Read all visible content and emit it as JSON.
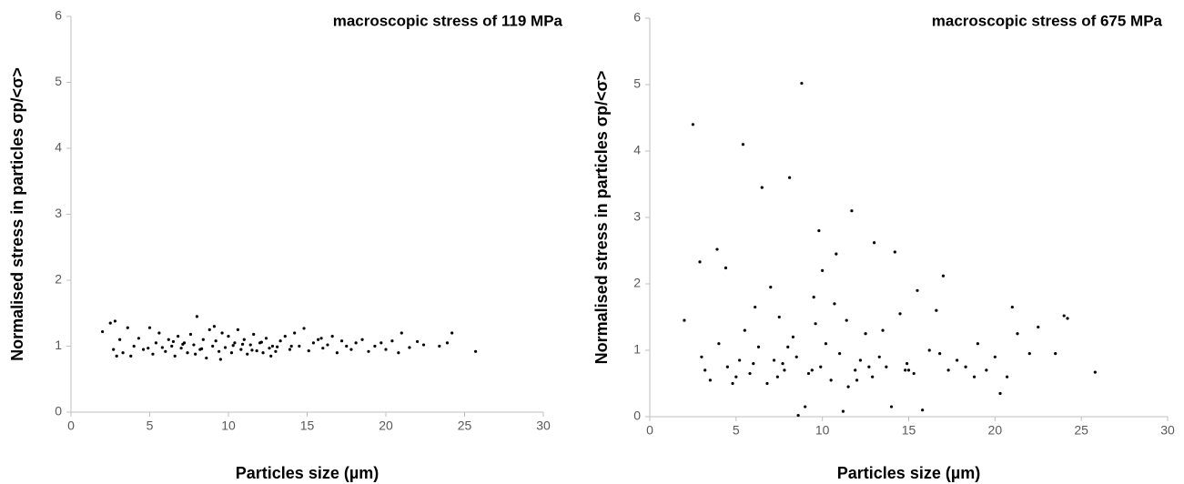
{
  "chart_data": [
    {
      "type": "scatter",
      "title": "macroscopic stress of 119 MPa",
      "xlabel": "Particles size (µm)",
      "ylabel": "Normalised stress in particles σp/<σ>",
      "xlim": [
        0,
        30
      ],
      "xticks": [
        0,
        5,
        10,
        15,
        20,
        25,
        30
      ],
      "ylim": [
        0,
        6
      ],
      "yticks": [
        0,
        1,
        2,
        3,
        4,
        5,
        6
      ],
      "grid": false,
      "color": "#000000",
      "x": [
        2.0,
        2.5,
        2.8,
        2.7,
        3.1,
        3.3,
        3.6,
        3.8,
        4.0,
        4.3,
        4.6,
        5.0,
        5.2,
        5.4,
        5.6,
        5.8,
        6.0,
        6.2,
        6.4,
        6.6,
        6.8,
        7.0,
        7.2,
        7.4,
        7.6,
        7.8,
        8.0,
        8.2,
        8.4,
        8.6,
        8.8,
        9.0,
        9.2,
        9.4,
        9.6,
        9.8,
        10.0,
        10.2,
        10.4,
        10.6,
        10.8,
        11.0,
        11.2,
        11.4,
        11.6,
        11.8,
        12.0,
        12.2,
        12.4,
        12.6,
        12.8,
        13.0,
        13.3,
        13.6,
        13.9,
        14.2,
        14.5,
        14.8,
        15.1,
        15.4,
        15.7,
        16.0,
        16.3,
        16.6,
        16.9,
        17.2,
        17.5,
        17.8,
        18.1,
        18.5,
        18.9,
        19.3,
        19.7,
        20.0,
        20.4,
        20.8,
        21.0,
        21.5,
        22.0,
        22.4,
        23.4,
        23.9,
        24.2,
        25.7,
        2.9,
        4.9,
        6.5,
        7.9,
        9.1,
        10.9,
        12.7,
        14.0,
        15.9,
        9.5,
        7.1,
        8.3,
        10.3,
        11.5,
        12.1,
        13.1
      ],
      "values": [
        1.22,
        1.35,
        1.38,
        0.95,
        1.1,
        0.9,
        1.28,
        0.85,
        1.0,
        1.12,
        0.95,
        1.28,
        0.88,
        1.05,
        1.2,
        0.98,
        0.92,
        1.1,
        1.0,
        0.85,
        1.15,
        0.97,
        1.05,
        0.9,
        1.18,
        1.02,
        1.45,
        0.95,
        1.1,
        0.82,
        1.25,
        1.0,
        1.08,
        0.92,
        1.2,
        0.98,
        1.15,
        0.9,
        1.05,
        1.25,
        0.95,
        1.1,
        0.88,
        1.02,
        1.18,
        0.93,
        1.05,
        0.9,
        1.12,
        0.97,
        1.0,
        0.92,
        1.08,
        1.15,
        0.95,
        1.2,
        1.0,
        1.27,
        0.93,
        1.05,
        1.1,
        0.97,
        1.02,
        1.15,
        0.9,
        1.08,
        1.0,
        0.95,
        1.05,
        1.1,
        0.92,
        1.0,
        1.05,
        0.95,
        1.08,
        0.9,
        1.2,
        0.98,
        1.07,
        1.02,
        1.0,
        1.05,
        1.2,
        0.92,
        0.85,
        0.97,
        1.07,
        0.88,
        1.3,
        1.03,
        0.85,
        1.0,
        1.12,
        0.8,
        1.03,
        0.96,
        1.01,
        0.94,
        1.06,
        0.99
      ]
    },
    {
      "type": "scatter",
      "title": "macroscopic stress of 675 MPa",
      "xlabel": "Particles size (µm)",
      "ylabel": "Normalised stress in particles σp/<σ>",
      "xlim": [
        0,
        30
      ],
      "xticks": [
        0,
        5,
        10,
        15,
        20,
        25,
        30
      ],
      "ylim": [
        0,
        6
      ],
      "yticks": [
        0,
        1,
        2,
        3,
        4,
        5,
        6
      ],
      "grid": false,
      "color": "#000000",
      "x": [
        8.8,
        2.5,
        5.4,
        8.1,
        6.5,
        11.7,
        9.8,
        13.0,
        3.9,
        14.2,
        10.8,
        2.9,
        4.4,
        7.0,
        17.0,
        2.0,
        21.0,
        24.0,
        24.2,
        25.8,
        8.6,
        9.0,
        11.2,
        15.8,
        20.3,
        14.0,
        3.0,
        3.5,
        4.0,
        4.5,
        5.0,
        5.5,
        6.0,
        6.3,
        6.8,
        7.2,
        7.5,
        7.8,
        8.3,
        8.5,
        9.2,
        9.5,
        9.9,
        10.2,
        10.5,
        11.0,
        11.4,
        11.9,
        12.2,
        12.5,
        12.9,
        13.3,
        13.7,
        14.5,
        14.9,
        15.3,
        16.2,
        16.6,
        17.3,
        17.8,
        18.3,
        19.0,
        19.5,
        20.0,
        20.7,
        21.3,
        22.0,
        22.5,
        23.5,
        3.2,
        4.8,
        5.8,
        6.1,
        7.4,
        8.0,
        9.4,
        10.0,
        10.7,
        11.5,
        12.7,
        13.5,
        14.8,
        15.5,
        16.8,
        18.8,
        5.2,
        7.7,
        9.6,
        12.0,
        15.0
      ],
      "values": [
        5.02,
        4.4,
        4.1,
        3.6,
        3.45,
        3.1,
        2.8,
        2.62,
        2.52,
        2.48,
        2.45,
        2.33,
        2.24,
        1.95,
        2.12,
        1.45,
        1.65,
        1.52,
        1.48,
        0.67,
        0.02,
        0.15,
        0.08,
        0.1,
        0.35,
        0.15,
        0.9,
        0.55,
        1.1,
        0.75,
        0.6,
        1.3,
        0.8,
        1.05,
        0.5,
        0.85,
        1.5,
        0.7,
        1.2,
        0.9,
        0.65,
        1.8,
        0.75,
        1.1,
        0.55,
        0.95,
        1.45,
        0.7,
        0.85,
        1.25,
        0.6,
        0.9,
        0.75,
        1.55,
        0.8,
        0.65,
        1.0,
        1.6,
        0.7,
        0.85,
        0.75,
        1.1,
        0.7,
        0.9,
        0.6,
        1.25,
        0.95,
        1.35,
        0.95,
        0.7,
        0.5,
        0.65,
        1.65,
        0.6,
        1.05,
        0.7,
        2.2,
        1.7,
        0.45,
        0.75,
        1.3,
        0.7,
        1.9,
        0.95,
        0.6,
        0.85,
        0.8,
        1.4,
        0.55,
        0.7
      ]
    }
  ]
}
